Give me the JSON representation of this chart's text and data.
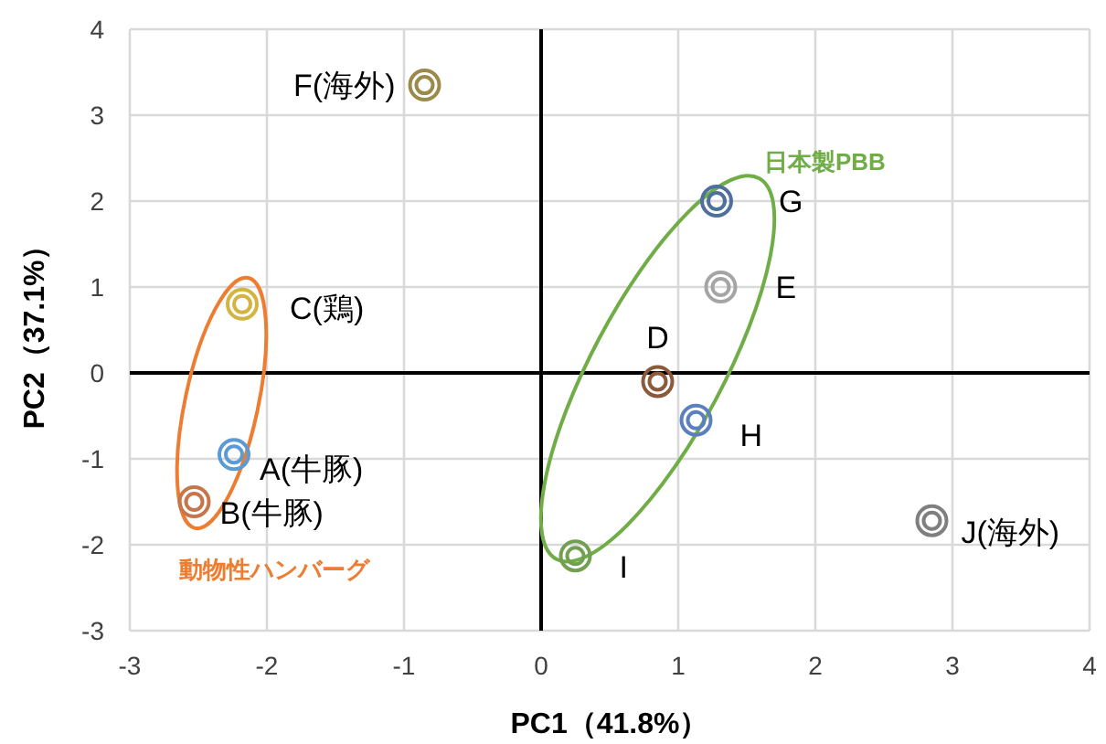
{
  "chart_data": {
    "type": "scatter",
    "xlabel": "PC1（41.8%）",
    "ylabel": "PC2（37.1%）",
    "xlim": [
      -3,
      4
    ],
    "ylim": [
      -3,
      4
    ],
    "xticks": [
      -3,
      -2,
      -1,
      0,
      1,
      2,
      3,
      4
    ],
    "yticks": [
      -3,
      -2,
      -1,
      0,
      1,
      2,
      3,
      4
    ],
    "grid": true,
    "legend": false,
    "marker": "circle",
    "annotations": [
      "日本製PBB",
      "動物性ハンバーグ"
    ],
    "series": [
      {
        "name": "A(牛豚)",
        "color": "#5b9bd5",
        "x": [
          -2.24
        ],
        "values": [
          -0.95
        ]
      },
      {
        "name": "B(牛豚)",
        "color": "#c5764a",
        "x": [
          -2.53
        ],
        "values": [
          -1.5
        ]
      },
      {
        "name": "C(鶏)",
        "color": "#d4b440",
        "x": [
          -2.18
        ],
        "values": [
          0.8
        ]
      },
      {
        "name": "D",
        "color": "#8b5a3a",
        "x": [
          0.85
        ],
        "values": [
          -0.1
        ]
      },
      {
        "name": "E",
        "color": "#a5a5a5",
        "x": [
          1.31
        ],
        "values": [
          1.0
        ]
      },
      {
        "name": "F(海外)",
        "color": "#9c8a4a",
        "x": [
          -0.85
        ],
        "values": [
          3.35
        ]
      },
      {
        "name": "G",
        "color": "#4f6f9c",
        "x": [
          1.28
        ],
        "values": [
          2.0
        ]
      },
      {
        "name": "H",
        "color": "#5b7fbf",
        "x": [
          1.13
        ],
        "values": [
          -0.55
        ]
      },
      {
        "name": "I",
        "color": "#70a050",
        "x": [
          0.25
        ],
        "values": [
          -2.13
        ]
      },
      {
        "name": "J(海外)",
        "color": "#7f7f7f",
        "x": [
          2.85
        ],
        "values": [
          -1.72
        ]
      }
    ]
  }
}
